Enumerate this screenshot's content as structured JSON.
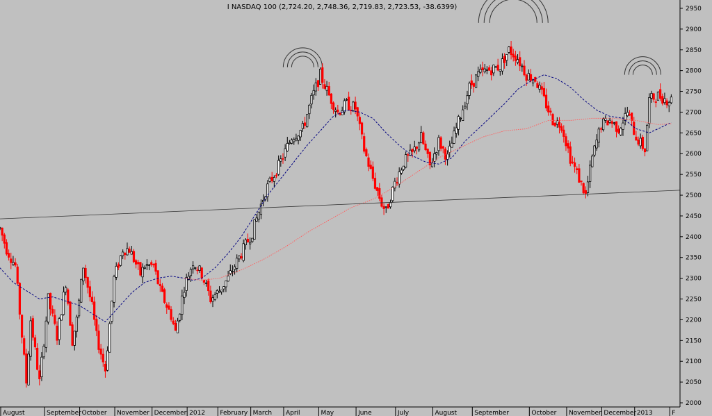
{
  "chart_data": {
    "type": "candlestick",
    "title": "I NASDAQ 100 (2,724.20, 2,748.36, 2,719.83, 2,723.53, -38.6399)",
    "xlabel": "",
    "ylabel": "",
    "ylim": [
      1990,
      2970
    ],
    "y_ticks": [
      2000,
      2050,
      2100,
      2150,
      2200,
      2250,
      2300,
      2350,
      2400,
      2450,
      2500,
      2550,
      2600,
      2650,
      2700,
      2750,
      2800,
      2850,
      2900,
      2950
    ],
    "x_tick_labels": [
      "August",
      "September",
      "October",
      "November",
      "December",
      "2012",
      "February",
      "March",
      "April",
      "May",
      "June",
      "July",
      "August",
      "September",
      "October",
      "November",
      "December",
      "2013",
      "F"
    ],
    "grid": false,
    "colors": {
      "background": "#c0c0c0",
      "up_candle": "#000000",
      "down_candle": "#ff0000",
      "ma_long": "#ff6060",
      "ma_short": "#000080",
      "trendline": "#333333",
      "arcs": "#333333"
    },
    "waypoints": [
      [
        0,
        2420
      ],
      [
        3,
        2370
      ],
      [
        7,
        2330
      ],
      [
        12,
        2050
      ],
      [
        14,
        2200
      ],
      [
        18,
        2050
      ],
      [
        22,
        2250
      ],
      [
        26,
        2160
      ],
      [
        30,
        2290
      ],
      [
        33,
        2150
      ],
      [
        35,
        2200
      ],
      [
        38,
        2330
      ],
      [
        42,
        2230
      ],
      [
        44,
        2160
      ],
      [
        48,
        2080
      ],
      [
        52,
        2300
      ],
      [
        56,
        2370
      ],
      [
        59,
        2370
      ],
      [
        64,
        2310
      ],
      [
        66,
        2330
      ],
      [
        70,
        2330
      ],
      [
        73,
        2270
      ],
      [
        78,
        2210
      ],
      [
        80,
        2170
      ],
      [
        84,
        2280
      ],
      [
        88,
        2340
      ],
      [
        92,
        2310
      ],
      [
        96,
        2250
      ],
      [
        100,
        2270
      ],
      [
        104,
        2300
      ],
      [
        109,
        2350
      ],
      [
        115,
        2410
      ],
      [
        121,
        2510
      ],
      [
        127,
        2570
      ],
      [
        133,
        2640
      ],
      [
        138,
        2660
      ],
      [
        142,
        2730
      ],
      [
        146,
        2790
      ],
      [
        150,
        2740
      ],
      [
        154,
        2700
      ],
      [
        158,
        2720
      ],
      [
        162,
        2710
      ],
      [
        166,
        2610
      ],
      [
        170,
        2540
      ],
      [
        174,
        2480
      ],
      [
        176,
        2460
      ],
      [
        180,
        2530
      ],
      [
        184,
        2580
      ],
      [
        188,
        2600
      ],
      [
        192,
        2640
      ],
      [
        196,
        2570
      ],
      [
        200,
        2630
      ],
      [
        204,
        2590
      ],
      [
        208,
        2660
      ],
      [
        214,
        2760
      ],
      [
        218,
        2790
      ],
      [
        222,
        2800
      ],
      [
        228,
        2810
      ],
      [
        232,
        2850
      ],
      [
        236,
        2830
      ],
      [
        240,
        2790
      ],
      [
        244,
        2780
      ],
      [
        248,
        2730
      ],
      [
        252,
        2680
      ],
      [
        256,
        2670
      ],
      [
        260,
        2590
      ],
      [
        264,
        2540
      ],
      [
        267,
        2500
      ],
      [
        270,
        2590
      ],
      [
        274,
        2670
      ],
      [
        278,
        2680
      ],
      [
        282,
        2660
      ],
      [
        286,
        2700
      ],
      [
        290,
        2640
      ],
      [
        294,
        2610
      ],
      [
        296,
        2730
      ],
      [
        300,
        2740
      ],
      [
        304,
        2730
      ],
      [
        306,
        2730
      ]
    ],
    "series": [
      {
        "style": "dashed",
        "color": "#000080",
        "points": [
          [
            0,
            2325
          ],
          [
            6,
            2290
          ],
          [
            12,
            2270
          ],
          [
            18,
            2250
          ],
          [
            24,
            2255
          ],
          [
            30,
            2245
          ],
          [
            36,
            2235
          ],
          [
            42,
            2215
          ],
          [
            48,
            2195
          ],
          [
            54,
            2230
          ],
          [
            60,
            2265
          ],
          [
            66,
            2290
          ],
          [
            72,
            2300
          ],
          [
            78,
            2305
          ],
          [
            84,
            2300
          ],
          [
            88,
            2295
          ],
          [
            92,
            2300
          ],
          [
            98,
            2325
          ],
          [
            104,
            2360
          ],
          [
            110,
            2400
          ],
          [
            116,
            2450
          ],
          [
            122,
            2500
          ],
          [
            128,
            2540
          ],
          [
            134,
            2580
          ],
          [
            140,
            2620
          ],
          [
            146,
            2655
          ],
          [
            152,
            2690
          ],
          [
            158,
            2705
          ],
          [
            164,
            2700
          ],
          [
            170,
            2685
          ],
          [
            176,
            2650
          ],
          [
            182,
            2620
          ],
          [
            188,
            2595
          ],
          [
            194,
            2580
          ],
          [
            200,
            2575
          ],
          [
            206,
            2590
          ],
          [
            212,
            2630
          ],
          [
            218,
            2660
          ],
          [
            224,
            2690
          ],
          [
            230,
            2720
          ],
          [
            236,
            2755
          ],
          [
            242,
            2775
          ],
          [
            248,
            2790
          ],
          [
            254,
            2780
          ],
          [
            260,
            2760
          ],
          [
            266,
            2730
          ],
          [
            272,
            2705
          ],
          [
            278,
            2690
          ],
          [
            284,
            2685
          ],
          [
            290,
            2660
          ],
          [
            296,
            2650
          ],
          [
            302,
            2665
          ],
          [
            306,
            2675
          ]
        ]
      },
      {
        "style": "dotted",
        "color": "#ff6060",
        "points": [
          [
            84,
            2300
          ],
          [
            92,
            2295
          ],
          [
            100,
            2300
          ],
          [
            110,
            2320
          ],
          [
            120,
            2345
          ],
          [
            130,
            2375
          ],
          [
            140,
            2410
          ],
          [
            150,
            2440
          ],
          [
            160,
            2470
          ],
          [
            170,
            2490
          ],
          [
            180,
            2520
          ],
          [
            190,
            2555
          ],
          [
            200,
            2590
          ],
          [
            210,
            2615
          ],
          [
            220,
            2640
          ],
          [
            230,
            2655
          ],
          [
            240,
            2660
          ],
          [
            250,
            2680
          ],
          [
            260,
            2680
          ],
          [
            270,
            2685
          ],
          [
            280,
            2685
          ],
          [
            290,
            2680
          ],
          [
            300,
            2670
          ],
          [
            306,
            2672
          ]
        ]
      }
    ],
    "trendline": [
      [
        0,
        2443
      ],
      [
        310,
        2512
      ]
    ],
    "arc_groups": [
      {
        "center": [
          2724,
          2438
        ],
        "radii": [
          28,
          22,
          16
        ]
      },
      {
        "center": [
          2840,
          2748
        ],
        "radii": [
          50,
          42,
          34
        ]
      },
      {
        "center": [
          2768,
          2946
        ],
        "radii": [
          26,
          20,
          14
        ]
      }
    ],
    "arc_center_units": "y in data units, x in days"
  }
}
